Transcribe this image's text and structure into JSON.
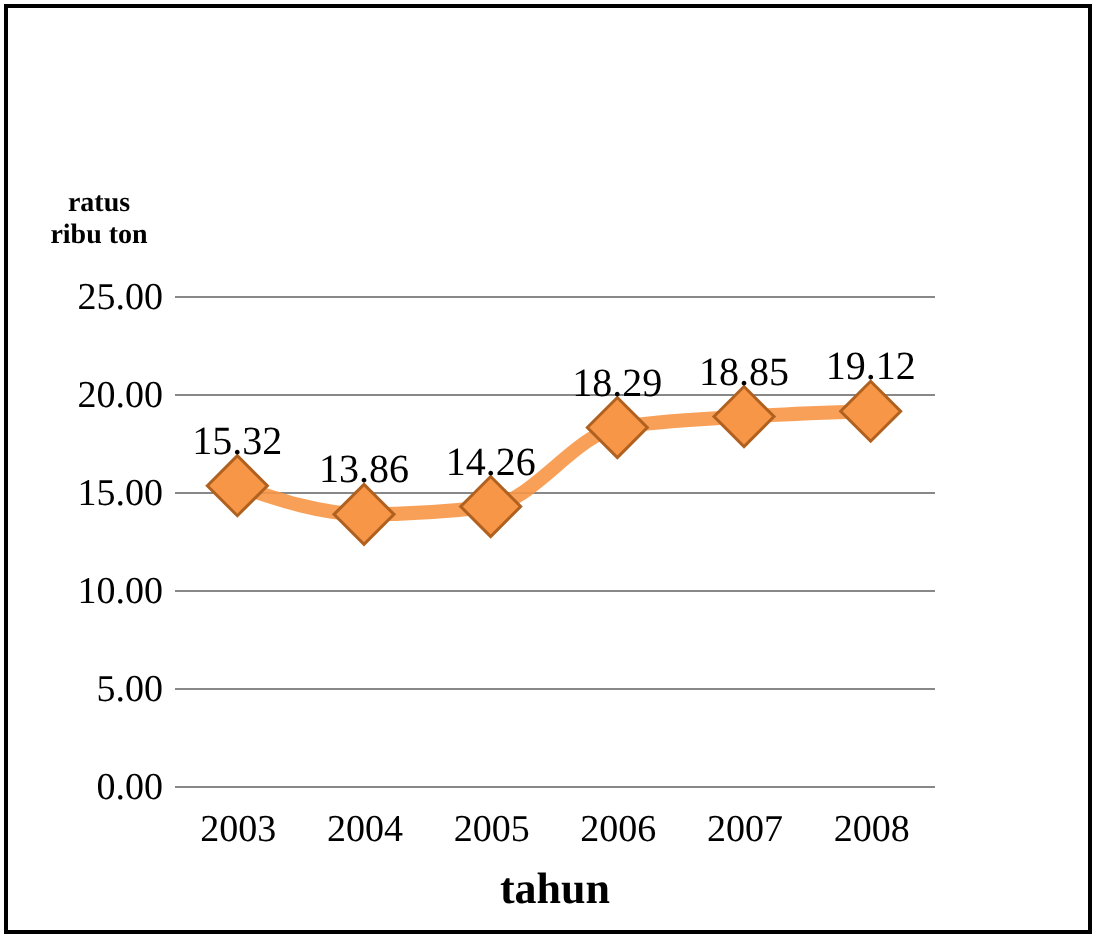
{
  "chart_data": {
    "type": "line",
    "xlabel": "tahun",
    "ylabel": "ratus ribu ton",
    "categories": [
      "2003",
      "2004",
      "2005",
      "2006",
      "2007",
      "2008"
    ],
    "series": [
      {
        "color": "#f79646",
        "values": [
          15.32,
          13.86,
          14.26,
          18.29,
          18.85,
          19.12
        ]
      }
    ],
    "ylim": [
      0,
      25
    ],
    "yticks": [
      {
        "value": 0,
        "label": "0.00"
      },
      {
        "value": 5,
        "label": "5.00"
      },
      {
        "value": 10,
        "label": "10.00"
      },
      {
        "value": 15,
        "label": "15.00"
      },
      {
        "value": 20,
        "label": "20.00"
      },
      {
        "value": 25,
        "label": "25.00"
      }
    ],
    "grid": "y",
    "marker": "diamond",
    "line_style": "solid",
    "data_labels": true,
    "legend": false
  }
}
